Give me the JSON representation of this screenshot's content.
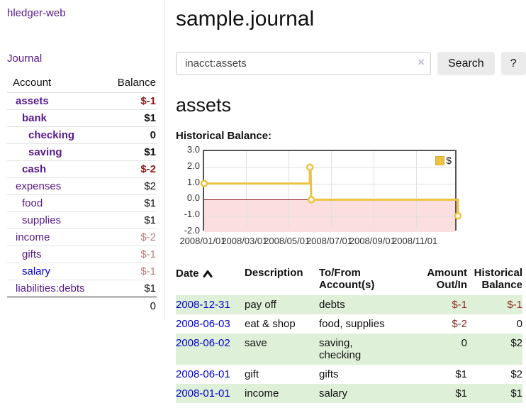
{
  "app": {
    "title": "hledger-web"
  },
  "nav": {
    "journal": "Journal"
  },
  "sidebar": {
    "headers": {
      "account": "Account",
      "balance": "Balance"
    },
    "accounts": [
      {
        "name": "assets",
        "balance": "$-1",
        "level": 1,
        "current": true,
        "neg": "strong"
      },
      {
        "name": "bank",
        "balance": "$1",
        "level": 2,
        "current": true
      },
      {
        "name": "checking",
        "balance": "0",
        "level": 3,
        "current": true
      },
      {
        "name": "saving",
        "balance": "$1",
        "level": 3,
        "current": true
      },
      {
        "name": "cash",
        "balance": "$-2",
        "level": 2,
        "current": true,
        "neg": "strong"
      },
      {
        "name": "expenses",
        "balance": "$2",
        "level": 1
      },
      {
        "name": "food",
        "balance": "$1",
        "level": 2
      },
      {
        "name": "supplies",
        "balance": "$1",
        "level": 2
      },
      {
        "name": "income",
        "balance": "$-2",
        "level": 1,
        "neg": "dim"
      },
      {
        "name": "gifts",
        "balance": "$-1",
        "level": 2,
        "neg": "dim"
      },
      {
        "name": "salary",
        "balance": "$-1",
        "level": 2,
        "neg": "dim",
        "unvisited": true
      },
      {
        "name": "liabilities:debts",
        "balance": "$1",
        "level": 1
      }
    ],
    "total": "0"
  },
  "header": {
    "title": "sample.journal"
  },
  "search": {
    "value": "inacct:assets",
    "clear_icon": "×",
    "button": "Search",
    "help": "?"
  },
  "account_page": {
    "heading": "assets",
    "chart_title": "Historical Balance:"
  },
  "chart_data": {
    "type": "line",
    "title": "Historical Balance:",
    "x_start": "2008-01-01",
    "x_end": "2008-12-31",
    "ylim": [
      -2,
      3
    ],
    "yticks": [
      3,
      2,
      1,
      0,
      -1,
      -2
    ],
    "ytick_labels": [
      "3.0",
      "2.0",
      "1.0",
      "0.0",
      "-1.0",
      "-2.0"
    ],
    "xtick_dates": [
      "2008-01-01",
      "2008-03-01",
      "2008-05-01",
      "2008-07-01",
      "2008-09-01",
      "2008-11-01"
    ],
    "xtick_labels": [
      "2008/01/01",
      "2008/03/01",
      "2008/05/01",
      "2008/07/01",
      "2008/09/01",
      "2008/11/01"
    ],
    "legend": "$",
    "series": [
      {
        "name": "$",
        "color": "#edc240",
        "points": [
          [
            "2008-01-01",
            1
          ],
          [
            "2008-06-01",
            1
          ],
          [
            "2008-06-01",
            2
          ],
          [
            "2008-06-02",
            2
          ],
          [
            "2008-06-03",
            0
          ],
          [
            "2008-12-31",
            0
          ],
          [
            "2008-12-31",
            -1
          ]
        ],
        "markers": [
          [
            "2008-01-01",
            1
          ],
          [
            "2008-06-01",
            2
          ],
          [
            "2008-06-03",
            0
          ],
          [
            "2008-12-31",
            -1
          ]
        ]
      }
    ],
    "colors": {
      "grid": "#e0e0e0",
      "border": "#545454",
      "zero_line": "#8b1a1a",
      "negative_fill": "#fbdfdf"
    },
    "legend_position": "top-right",
    "grid": true
  },
  "register": {
    "headers": [
      {
        "label": "Date",
        "sorted": "asc"
      },
      {
        "label": "Description"
      },
      {
        "label": "To/From\nAccount(s)"
      },
      {
        "label": "Amount\nOut/In",
        "align": "right"
      },
      {
        "label": "Historical\nBalance",
        "align": "right"
      }
    ],
    "rows": [
      {
        "date": "2008-12-31",
        "description": "pay off",
        "accounts": "debts",
        "amount": "$-1",
        "amount_neg": true,
        "balance": "$-1",
        "balance_neg": true
      },
      {
        "date": "2008-06-03",
        "description": "eat & shop",
        "accounts": "food, supplies",
        "amount": "$-2",
        "amount_neg": true,
        "balance": "0"
      },
      {
        "date": "2008-06-02",
        "description": "save",
        "accounts": "saving,\nchecking",
        "amount": "0",
        "balance": "$2"
      },
      {
        "date": "2008-06-01",
        "description": "gift",
        "accounts": "gifts",
        "amount": "$1",
        "balance": "$2"
      },
      {
        "date": "2008-01-01",
        "description": "income",
        "accounts": "salary",
        "amount": "$1",
        "balance": "$1"
      }
    ]
  }
}
